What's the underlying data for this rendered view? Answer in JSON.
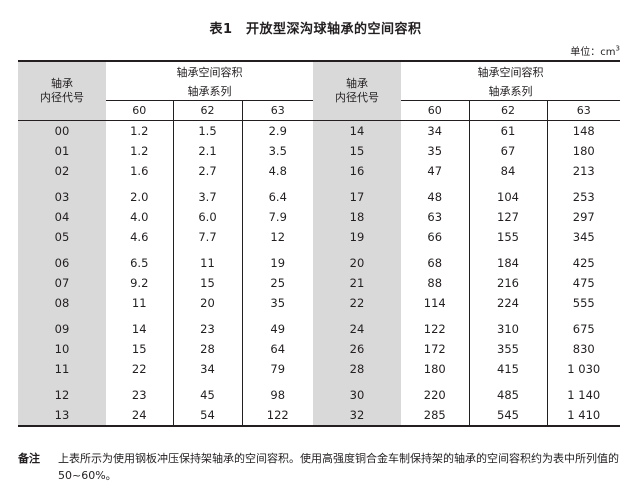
{
  "title": "表1　开放型深沟球轴承的空间容积",
  "unit_prefix": "单位：cm",
  "unit_sup": "3",
  "header": {
    "code_label_1": "轴承",
    "code_label_2": "内径代号",
    "volume_label": "轴承空间容积",
    "series_label": "轴承系列",
    "series": [
      "60",
      "62",
      "63"
    ]
  },
  "left_groups": [
    [
      [
        "00",
        "1.2",
        "1.5",
        "2.9"
      ],
      [
        "01",
        "1.2",
        "2.1",
        "3.5"
      ],
      [
        "02",
        "1.6",
        "2.7",
        "4.8"
      ]
    ],
    [
      [
        "03",
        "2.0",
        "3.7",
        "6.4"
      ],
      [
        "04",
        "4.0",
        "6.0",
        "7.9"
      ],
      [
        "05",
        "4.6",
        "7.7",
        "12"
      ]
    ],
    [
      [
        "06",
        "6.5",
        "11",
        "19"
      ],
      [
        "07",
        "9.2",
        "15",
        "25"
      ],
      [
        "08",
        "11",
        "20",
        "35"
      ]
    ],
    [
      [
        "09",
        "14",
        "23",
        "49"
      ],
      [
        "10",
        "15",
        "28",
        "64"
      ],
      [
        "11",
        "22",
        "34",
        "79"
      ]
    ],
    [
      [
        "12",
        "23",
        "45",
        "98"
      ],
      [
        "13",
        "24",
        "54",
        "122"
      ]
    ]
  ],
  "right_groups": [
    [
      [
        "14",
        "34",
        "61",
        "148"
      ],
      [
        "15",
        "35",
        "67",
        "180"
      ],
      [
        "16",
        "47",
        "84",
        "213"
      ]
    ],
    [
      [
        "17",
        "48",
        "104",
        "253"
      ],
      [
        "18",
        "63",
        "127",
        "297"
      ],
      [
        "19",
        "66",
        "155",
        "345"
      ]
    ],
    [
      [
        "20",
        "68",
        "184",
        "425"
      ],
      [
        "21",
        "88",
        "216",
        "475"
      ],
      [
        "22",
        "114",
        "224",
        "555"
      ]
    ],
    [
      [
        "24",
        "122",
        "310",
        "675"
      ],
      [
        "26",
        "172",
        "355",
        "830"
      ],
      [
        "28",
        "180",
        "415",
        "1 030"
      ]
    ],
    [
      [
        "30",
        "220",
        "485",
        "1 140"
      ],
      [
        "32",
        "285",
        "545",
        "1 410"
      ]
    ]
  ],
  "note_label": "备注",
  "note_text": "上表所示为使用钢板冲压保持架轴承的空间容积。使用高强度铜合金车制保持架的轴承的空间容积约为表中所列值的 50~60%。"
}
